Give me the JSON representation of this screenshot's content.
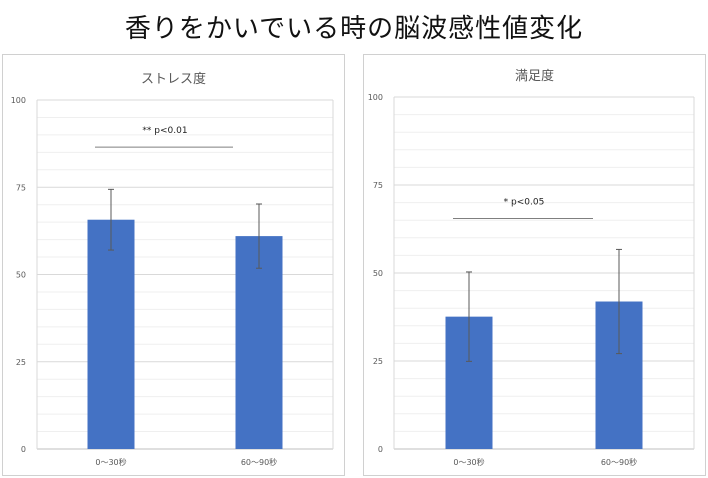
{
  "title": "香りをかいでいる時の脳波感性値変化",
  "colors": {
    "bar": "#4472C4",
    "grid": "#d9d9d9",
    "axis": "#bfbfbf",
    "error": "#595959",
    "sig_line": "#7f7f7f"
  },
  "chart_data": [
    {
      "type": "bar",
      "title": "ストレス度",
      "categories": [
        "0〜30秒",
        "60〜90秒"
      ],
      "values": [
        65.7,
        61.0
      ],
      "error": [
        8.7,
        9.2
      ],
      "ylim": [
        0,
        100
      ],
      "yticks": [
        0,
        25,
        50,
        75,
        100
      ],
      "grid": true,
      "annotation": {
        "text": "** p<0.01",
        "y": 86.5
      }
    },
    {
      "type": "bar",
      "title": "満足度",
      "categories": [
        "0〜30秒",
        "60〜90秒"
      ],
      "values": [
        37.6,
        41.9
      ],
      "error": [
        12.7,
        14.8
      ],
      "ylim": [
        0,
        100
      ],
      "yticks": [
        0,
        25,
        50,
        75,
        100
      ],
      "grid": true,
      "annotation": {
        "text": "* p<0.05",
        "y": 65.5
      }
    }
  ]
}
